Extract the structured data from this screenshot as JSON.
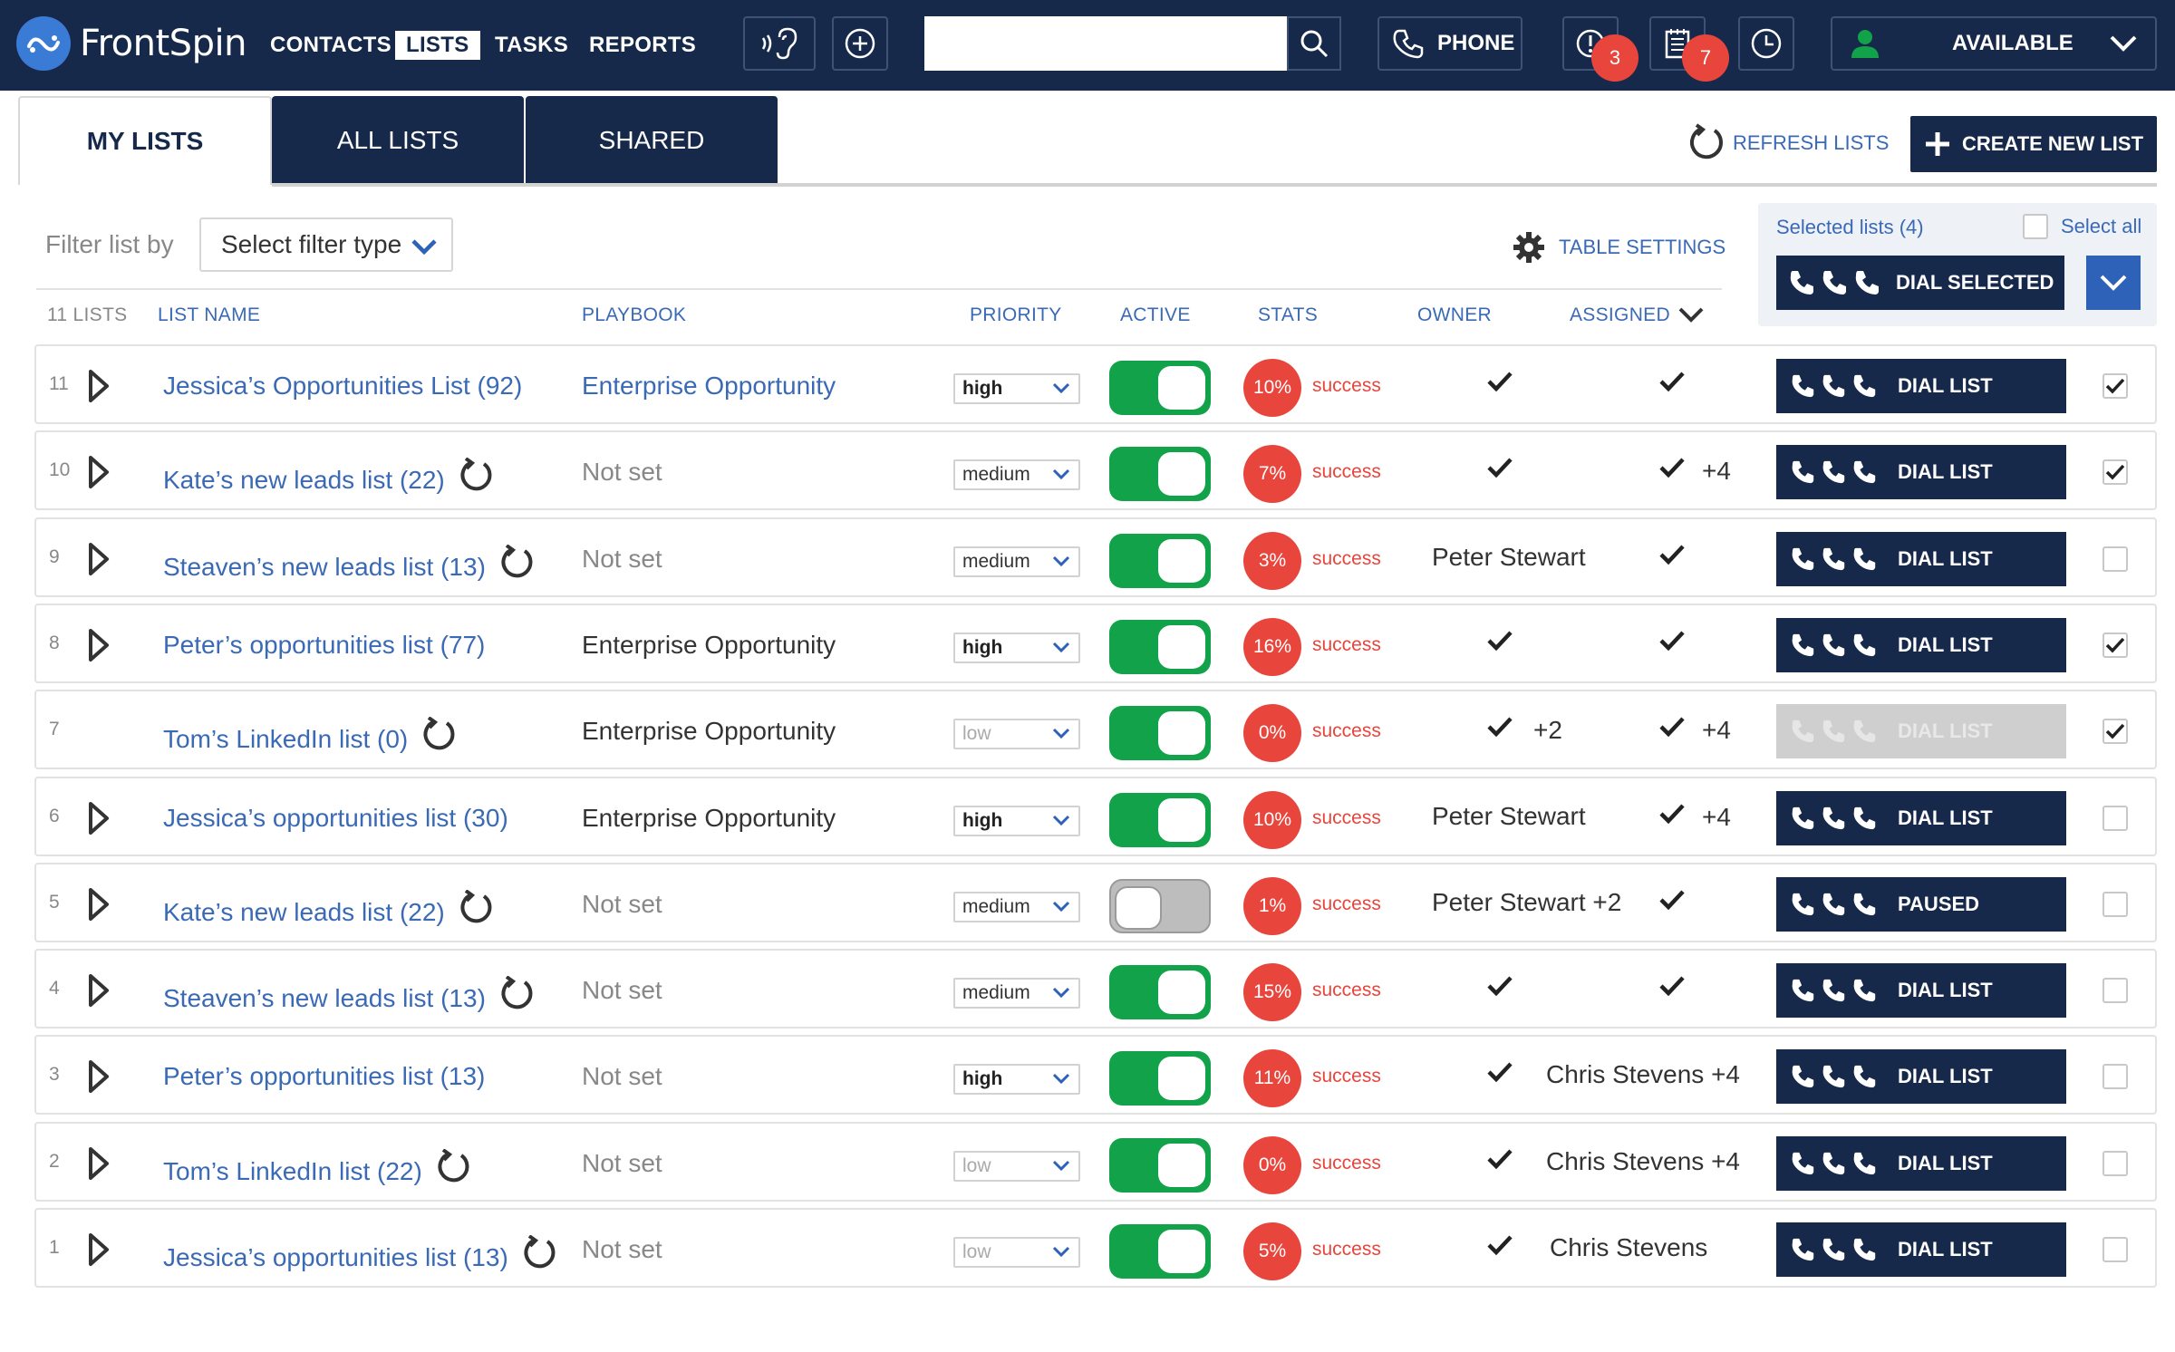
{
  "app": {
    "brand": "FrontSpin",
    "nav": [
      "CONTACTS",
      "LISTS",
      "TASKS",
      "REPORTS"
    ],
    "active_nav": "LISTS",
    "search_placeholder": "",
    "phone_label": "PHONE",
    "alerts_count": "3",
    "tasks_count": "7",
    "status_label": "AVAILABLE",
    "colors": {
      "navy": "#16294a",
      "link": "#3a6ab5",
      "success_red": "#e8453c",
      "toggle_green": "#12a24a"
    }
  },
  "tabs": {
    "my": "MY LISTS",
    "all": "ALL LISTS",
    "shared": "SHARED"
  },
  "actions": {
    "refresh": "REFRESH LISTS",
    "create": "CREATE NEW LIST"
  },
  "filter": {
    "label": "Filter list by",
    "select": "Select filter type"
  },
  "table_settings": "TABLE SETTINGS",
  "selection": {
    "count_label": "Selected lists (4)",
    "select_all": "Select all",
    "dial_selected": "DIAL SELECTED"
  },
  "table": {
    "count": "11 LISTS",
    "headers": {
      "name": "LIST NAME",
      "playbook": "PLAYBOOK",
      "priority": "PRIORITY",
      "active": "ACTIVE",
      "stats": "STATS",
      "owner": "OWNER",
      "assigned": "ASSIGNED"
    },
    "rows": [
      {
        "num": "11",
        "expand": true,
        "name": "Jessica’s Opportunities List (92)",
        "spin": false,
        "playbook": "Enterprise Opportunity",
        "pb_style": "link",
        "priority": "high",
        "active": true,
        "stat": "10%",
        "success": "success",
        "owner": "",
        "owner_check": true,
        "owner_extra": "",
        "assigned": "",
        "assigned_check": true,
        "assigned_extra": "",
        "dial": "DIAL LIST",
        "dial_disabled": false,
        "checked": true
      },
      {
        "num": "10",
        "expand": true,
        "name": "Kate’s new leads list (22)",
        "spin": true,
        "playbook": "Not set",
        "pb_style": "muted",
        "priority": "medium",
        "active": true,
        "stat": "7%",
        "success": "success",
        "owner": "",
        "owner_check": true,
        "owner_extra": "",
        "assigned": "",
        "assigned_check": true,
        "assigned_extra": "+4",
        "dial": "DIAL LIST",
        "dial_disabled": false,
        "checked": true
      },
      {
        "num": "9",
        "expand": true,
        "name": "Steaven’s new leads list (13)",
        "spin": true,
        "playbook": "Not set",
        "pb_style": "muted",
        "priority": "medium",
        "active": true,
        "stat": "3%",
        "success": "success",
        "owner": "Peter Stewart",
        "owner_check": false,
        "owner_extra": "",
        "assigned": "",
        "assigned_check": true,
        "assigned_extra": "",
        "dial": "DIAL LIST",
        "dial_disabled": false,
        "checked": false
      },
      {
        "num": "8",
        "expand": true,
        "name": "Peter’s opportunities list (77)",
        "spin": false,
        "playbook": "Enterprise Opportunity",
        "pb_style": "plain",
        "priority": "high",
        "active": true,
        "stat": "16%",
        "success": "success",
        "owner": "",
        "owner_check": true,
        "owner_extra": "",
        "assigned": "",
        "assigned_check": true,
        "assigned_extra": "",
        "dial": "DIAL LIST",
        "dial_disabled": false,
        "checked": true
      },
      {
        "num": "7",
        "expand": false,
        "name": "Tom’s LinkedIn list (0)",
        "spin": true,
        "playbook": "Enterprise Opportunity",
        "pb_style": "plain",
        "priority": "low",
        "active": true,
        "stat": "0%",
        "success": "success",
        "owner": "",
        "owner_check": true,
        "owner_extra": "+2",
        "assigned": "",
        "assigned_check": true,
        "assigned_extra": "+4",
        "dial": "DIAL LIST",
        "dial_disabled": true,
        "checked": true
      },
      {
        "num": "6",
        "expand": true,
        "name": "Jessica’s opportunities list (30)",
        "spin": false,
        "playbook": "Enterprise Opportunity",
        "pb_style": "plain",
        "priority": "high",
        "active": true,
        "stat": "10%",
        "success": "success",
        "owner": "Peter Stewart",
        "owner_check": false,
        "owner_extra": "",
        "assigned": "",
        "assigned_check": true,
        "assigned_extra": "+4",
        "dial": "DIAL LIST",
        "dial_disabled": false,
        "checked": false
      },
      {
        "num": "5",
        "expand": true,
        "name": "Kate’s new leads list (22)",
        "spin": true,
        "playbook": "Not set",
        "pb_style": "muted",
        "priority": "medium",
        "active": false,
        "stat": "1%",
        "success": "success",
        "owner": "Peter Stewart +2",
        "owner_check": false,
        "owner_extra": "",
        "assigned": "",
        "assigned_check": true,
        "assigned_extra": "",
        "dial": "PAUSED",
        "dial_disabled": false,
        "checked": false
      },
      {
        "num": "4",
        "expand": true,
        "name": "Steaven’s new leads list (13)",
        "spin": true,
        "playbook": "Not set",
        "pb_style": "muted",
        "priority": "medium",
        "active": true,
        "stat": "15%",
        "success": "success",
        "owner": "",
        "owner_check": true,
        "owner_extra": "",
        "assigned": "",
        "assigned_check": true,
        "assigned_extra": "",
        "dial": "DIAL LIST",
        "dial_disabled": false,
        "checked": false
      },
      {
        "num": "3",
        "expand": true,
        "name": "Peter’s opportunities list (13)",
        "spin": false,
        "playbook": "Not set",
        "pb_style": "muted",
        "priority": "high",
        "active": true,
        "stat": "11%",
        "success": "success",
        "owner": "",
        "owner_check": true,
        "owner_extra": "",
        "assigned": "Chris Stevens +4",
        "assigned_check": false,
        "assigned_extra": "",
        "dial": "DIAL LIST",
        "dial_disabled": false,
        "checked": false
      },
      {
        "num": "2",
        "expand": true,
        "name": "Tom’s LinkedIn list (22)",
        "spin": true,
        "playbook": "Not set",
        "pb_style": "muted",
        "priority": "low",
        "active": true,
        "stat": "0%",
        "success": "success",
        "owner": "",
        "owner_check": true,
        "owner_extra": "",
        "assigned": "Chris Stevens +4",
        "assigned_check": false,
        "assigned_extra": "",
        "dial": "DIAL LIST",
        "dial_disabled": false,
        "checked": false
      },
      {
        "num": "1",
        "expand": true,
        "name": "Jessica’s opportunities list (13)",
        "spin": true,
        "playbook": "Not set",
        "pb_style": "muted",
        "priority": "low",
        "active": true,
        "stat": "5%",
        "success": "success",
        "owner": "",
        "owner_check": true,
        "owner_extra": "",
        "assigned": "Chris Stevens",
        "assigned_check": false,
        "assigned_extra": "",
        "dial": "DIAL LIST",
        "dial_disabled": false,
        "checked": false
      }
    ]
  }
}
